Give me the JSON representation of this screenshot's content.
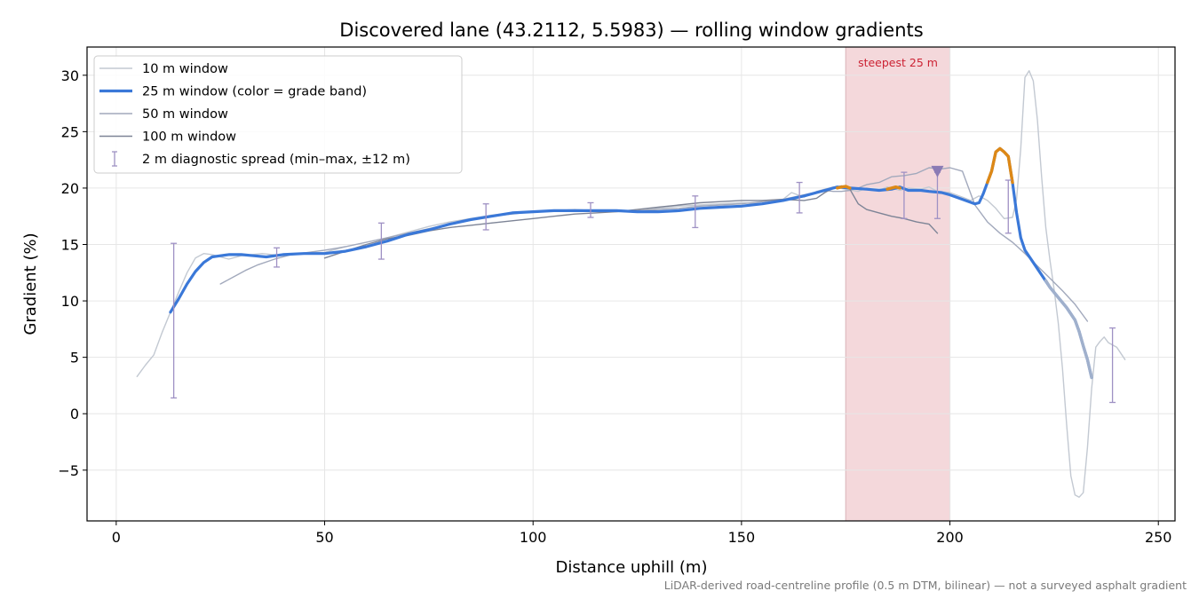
{
  "chart_data": {
    "type": "line",
    "title": "Discovered lane (43.2112, 5.5983) — rolling window gradients",
    "xlabel": "Distance uphill (m)",
    "ylabel": "Gradient (%)",
    "xlim": [
      -7,
      254
    ],
    "ylim": [
      -9.5,
      32.5
    ],
    "xticks": [
      "0",
      "50",
      "100",
      "150",
      "200",
      "250"
    ],
    "xtick_values": [
      0,
      50,
      100,
      150,
      200,
      250
    ],
    "yticks": [
      "−5",
      "0",
      "5",
      "10",
      "15",
      "20",
      "25",
      "30"
    ],
    "ytick_values": [
      -5,
      0,
      5,
      10,
      15,
      20,
      25,
      30
    ],
    "grid": true,
    "legend_placement": "top-left",
    "footnote": "LiDAR-derived road-centreline profile (0.5 m DTM, bilinear) — not a surveyed asphalt gradient",
    "highlight": {
      "label": "steepest 25 m",
      "x_range": [
        175,
        200
      ],
      "color": "#f4d8db"
    },
    "marker": {
      "x": 197,
      "y": 21.5,
      "shape": "triangle-down",
      "color": "#8b7bb5"
    },
    "legend": [
      {
        "label": "10 m window",
        "style": "thin",
        "color": "#c3c9d2"
      },
      {
        "label": "25 m window (color = grade band)",
        "style": "thick",
        "color": "#3a78d8"
      },
      {
        "label": "50 m window",
        "style": "thin",
        "color": "#a2a9bc"
      },
      {
        "label": "100 m window",
        "style": "thin",
        "color": "#7d8496"
      },
      {
        "label": "2 m diagnostic spread (min–max, ±12 m)",
        "style": "errorbar",
        "color": "#9f91c4"
      }
    ],
    "series": [
      {
        "name": "10 m window",
        "color": "#c3c9d2",
        "width": 1.4,
        "x": [
          5,
          7,
          9,
          11,
          13,
          15,
          17,
          19,
          21,
          23,
          25,
          27,
          30,
          35,
          40,
          45,
          50,
          55,
          60,
          65,
          70,
          75,
          80,
          85,
          90,
          95,
          100,
          105,
          110,
          115,
          120,
          125,
          130,
          135,
          140,
          145,
          150,
          155,
          160,
          162,
          165,
          168,
          170,
          172,
          175,
          178,
          180,
          183,
          185,
          188,
          190,
          193,
          195,
          197,
          200,
          203,
          205,
          207,
          209,
          211,
          213,
          215,
          216,
          217,
          218,
          219,
          220,
          221,
          222,
          223,
          224,
          225,
          226,
          227,
          228,
          229,
          230,
          231,
          232,
          233,
          234,
          235,
          236,
          237,
          238,
          240,
          242
        ],
        "y": [
          3.3,
          4.3,
          5.2,
          7.2,
          9.0,
          10.8,
          12.5,
          13.8,
          14.2,
          14.1,
          13.9,
          13.7,
          14.0,
          14.2,
          14.0,
          14.2,
          14.3,
          14.8,
          15.2,
          15.6,
          16.1,
          16.6,
          17.0,
          17.3,
          17.6,
          17.8,
          17.9,
          18.0,
          18.1,
          18.0,
          17.9,
          18.0,
          18.2,
          18.4,
          18.5,
          18.6,
          18.7,
          18.6,
          19.0,
          19.6,
          19.2,
          19.7,
          19.9,
          20.1,
          19.9,
          19.7,
          20.0,
          19.8,
          20.1,
          19.8,
          20.0,
          19.9,
          20.1,
          19.7,
          19.6,
          19.2,
          18.9,
          19.3,
          18.9,
          18.2,
          17.3,
          17.4,
          19.0,
          23.5,
          29.8,
          30.4,
          29.5,
          26.0,
          21.0,
          16.5,
          13.6,
          11.0,
          8.0,
          4.0,
          -1.0,
          -5.5,
          -7.2,
          -7.4,
          -7.0,
          -3.0,
          2.2,
          5.9,
          6.4,
          6.8,
          6.3,
          5.9,
          4.8
        ]
      },
      {
        "name": "25 m window",
        "color": "#3a78d8",
        "width": 3.2,
        "x": [
          13,
          15,
          17,
          19,
          21,
          23,
          25,
          27,
          30,
          33,
          36,
          40,
          45,
          50,
          55,
          60,
          65,
          70,
          75,
          80,
          85,
          90,
          95,
          100,
          105,
          110,
          115,
          120,
          125,
          130,
          135,
          140,
          145,
          150,
          155,
          160,
          165,
          170,
          173,
          176,
          180,
          183,
          186,
          188,
          190,
          193,
          195,
          198,
          200,
          203,
          206,
          207,
          208,
          209,
          210,
          211,
          212,
          213,
          214,
          215,
          216,
          217,
          218,
          220,
          222,
          224,
          226,
          228,
          230,
          231,
          232,
          233,
          234
        ],
        "y": [
          9.0,
          10.2,
          11.5,
          12.6,
          13.4,
          13.9,
          14.0,
          14.1,
          14.1,
          14.0,
          13.9,
          14.1,
          14.2,
          14.2,
          14.4,
          14.8,
          15.3,
          15.9,
          16.3,
          16.8,
          17.2,
          17.5,
          17.8,
          17.9,
          18.0,
          18.0,
          18.0,
          18.0,
          17.9,
          17.9,
          18.0,
          18.2,
          18.3,
          18.4,
          18.6,
          18.9,
          19.3,
          19.8,
          20.1,
          20.0,
          19.9,
          19.8,
          19.9,
          20.1,
          19.8,
          19.8,
          19.7,
          19.6,
          19.4,
          19.0,
          18.6,
          18.7,
          19.5,
          20.5,
          21.5,
          23.2,
          23.5,
          23.2,
          22.8,
          20.5,
          17.8,
          15.6,
          14.5,
          13.4,
          12.3,
          11.2,
          10.3,
          9.4,
          8.3,
          7.3,
          6.0,
          4.8,
          3.2
        ]
      },
      {
        "name": "50 m window",
        "color": "#a2a9bc",
        "width": 1.4,
        "x": [
          25,
          28,
          31,
          34,
          38,
          42,
          46,
          50,
          55,
          60,
          65,
          70,
          75,
          80,
          85,
          90,
          95,
          100,
          105,
          110,
          115,
          120,
          125,
          130,
          135,
          140,
          145,
          150,
          155,
          160,
          165,
          170,
          172,
          174,
          176,
          178,
          180,
          183,
          186,
          189,
          192,
          195,
          198,
          200,
          203,
          206,
          209,
          212,
          215,
          218,
          221,
          224,
          227,
          230,
          233
        ],
        "y": [
          11.5,
          12.1,
          12.7,
          13.2,
          13.7,
          14.1,
          14.3,
          14.5,
          14.8,
          15.2,
          15.6,
          16.0,
          16.4,
          16.8,
          17.2,
          17.5,
          17.7,
          17.9,
          18.0,
          18.0,
          18.0,
          18.0,
          18.0,
          18.1,
          18.2,
          18.4,
          18.5,
          18.6,
          18.8,
          19.0,
          19.4,
          19.8,
          19.7,
          19.7,
          19.8,
          20.0,
          20.3,
          20.5,
          21.0,
          21.1,
          21.3,
          21.8,
          21.7,
          21.8,
          21.5,
          18.5,
          17.0,
          16.0,
          15.2,
          14.2,
          13.1,
          12.0,
          10.9,
          9.7,
          8.2
        ]
      },
      {
        "name": "100 m window",
        "color": "#7d8496",
        "width": 1.4,
        "x": [
          50,
          55,
          60,
          65,
          70,
          75,
          80,
          85,
          90,
          95,
          100,
          105,
          110,
          115,
          120,
          125,
          130,
          135,
          140,
          145,
          150,
          155,
          160,
          165,
          168,
          170,
          172,
          174,
          176,
          178,
          180,
          183,
          186,
          189,
          192,
          195,
          197
        ],
        "y": [
          13.8,
          14.4,
          15.0,
          15.5,
          15.8,
          16.2,
          16.5,
          16.7,
          16.9,
          17.1,
          17.3,
          17.5,
          17.7,
          17.8,
          17.9,
          18.1,
          18.3,
          18.5,
          18.7,
          18.8,
          18.9,
          18.9,
          19.0,
          18.9,
          19.1,
          19.6,
          20.0,
          20.2,
          19.9,
          18.6,
          18.1,
          17.8,
          17.5,
          17.3,
          17.0,
          16.8,
          16.0
        ]
      }
    ],
    "band_segments": [
      {
        "color": "#dd8816",
        "x": [
          173,
          174,
          175,
          176
        ],
        "y": [
          20.0,
          20.1,
          20.15,
          20.0
        ]
      },
      {
        "color": "#dd8816",
        "x": [
          185,
          186,
          187,
          188
        ],
        "y": [
          19.9,
          20.0,
          20.1,
          20.0
        ]
      },
      {
        "color": "#dd8816",
        "x": [
          209,
          210,
          211,
          212,
          213,
          214,
          215
        ],
        "y": [
          20.5,
          21.5,
          23.2,
          23.5,
          23.2,
          22.8,
          20.5
        ]
      },
      {
        "color": "#a0b0cc",
        "x": [
          223,
          224,
          226,
          228,
          230,
          231,
          232,
          233,
          234
        ],
        "y": [
          11.8,
          11.2,
          10.3,
          9.4,
          8.3,
          7.3,
          6.0,
          4.8,
          3.2
        ]
      }
    ],
    "error_bars": [
      {
        "x": 13.8,
        "min": 1.4,
        "max": 15.1
      },
      {
        "x": 38.5,
        "min": 13.0,
        "max": 14.7
      },
      {
        "x": 63.6,
        "min": 13.7,
        "max": 16.9
      },
      {
        "x": 88.7,
        "min": 16.3,
        "max": 18.6
      },
      {
        "x": 113.8,
        "min": 17.4,
        "max": 18.7
      },
      {
        "x": 138.9,
        "min": 16.5,
        "max": 19.3
      },
      {
        "x": 163.9,
        "min": 17.8,
        "max": 20.5
      },
      {
        "x": 189,
        "min": 17.3,
        "max": 21.4
      },
      {
        "x": 197,
        "min": 17.3,
        "max": 21.4
      },
      {
        "x": 214,
        "min": 16.0,
        "max": 20.7
      },
      {
        "x": 239,
        "min": 1.0,
        "max": 7.6
      }
    ]
  }
}
